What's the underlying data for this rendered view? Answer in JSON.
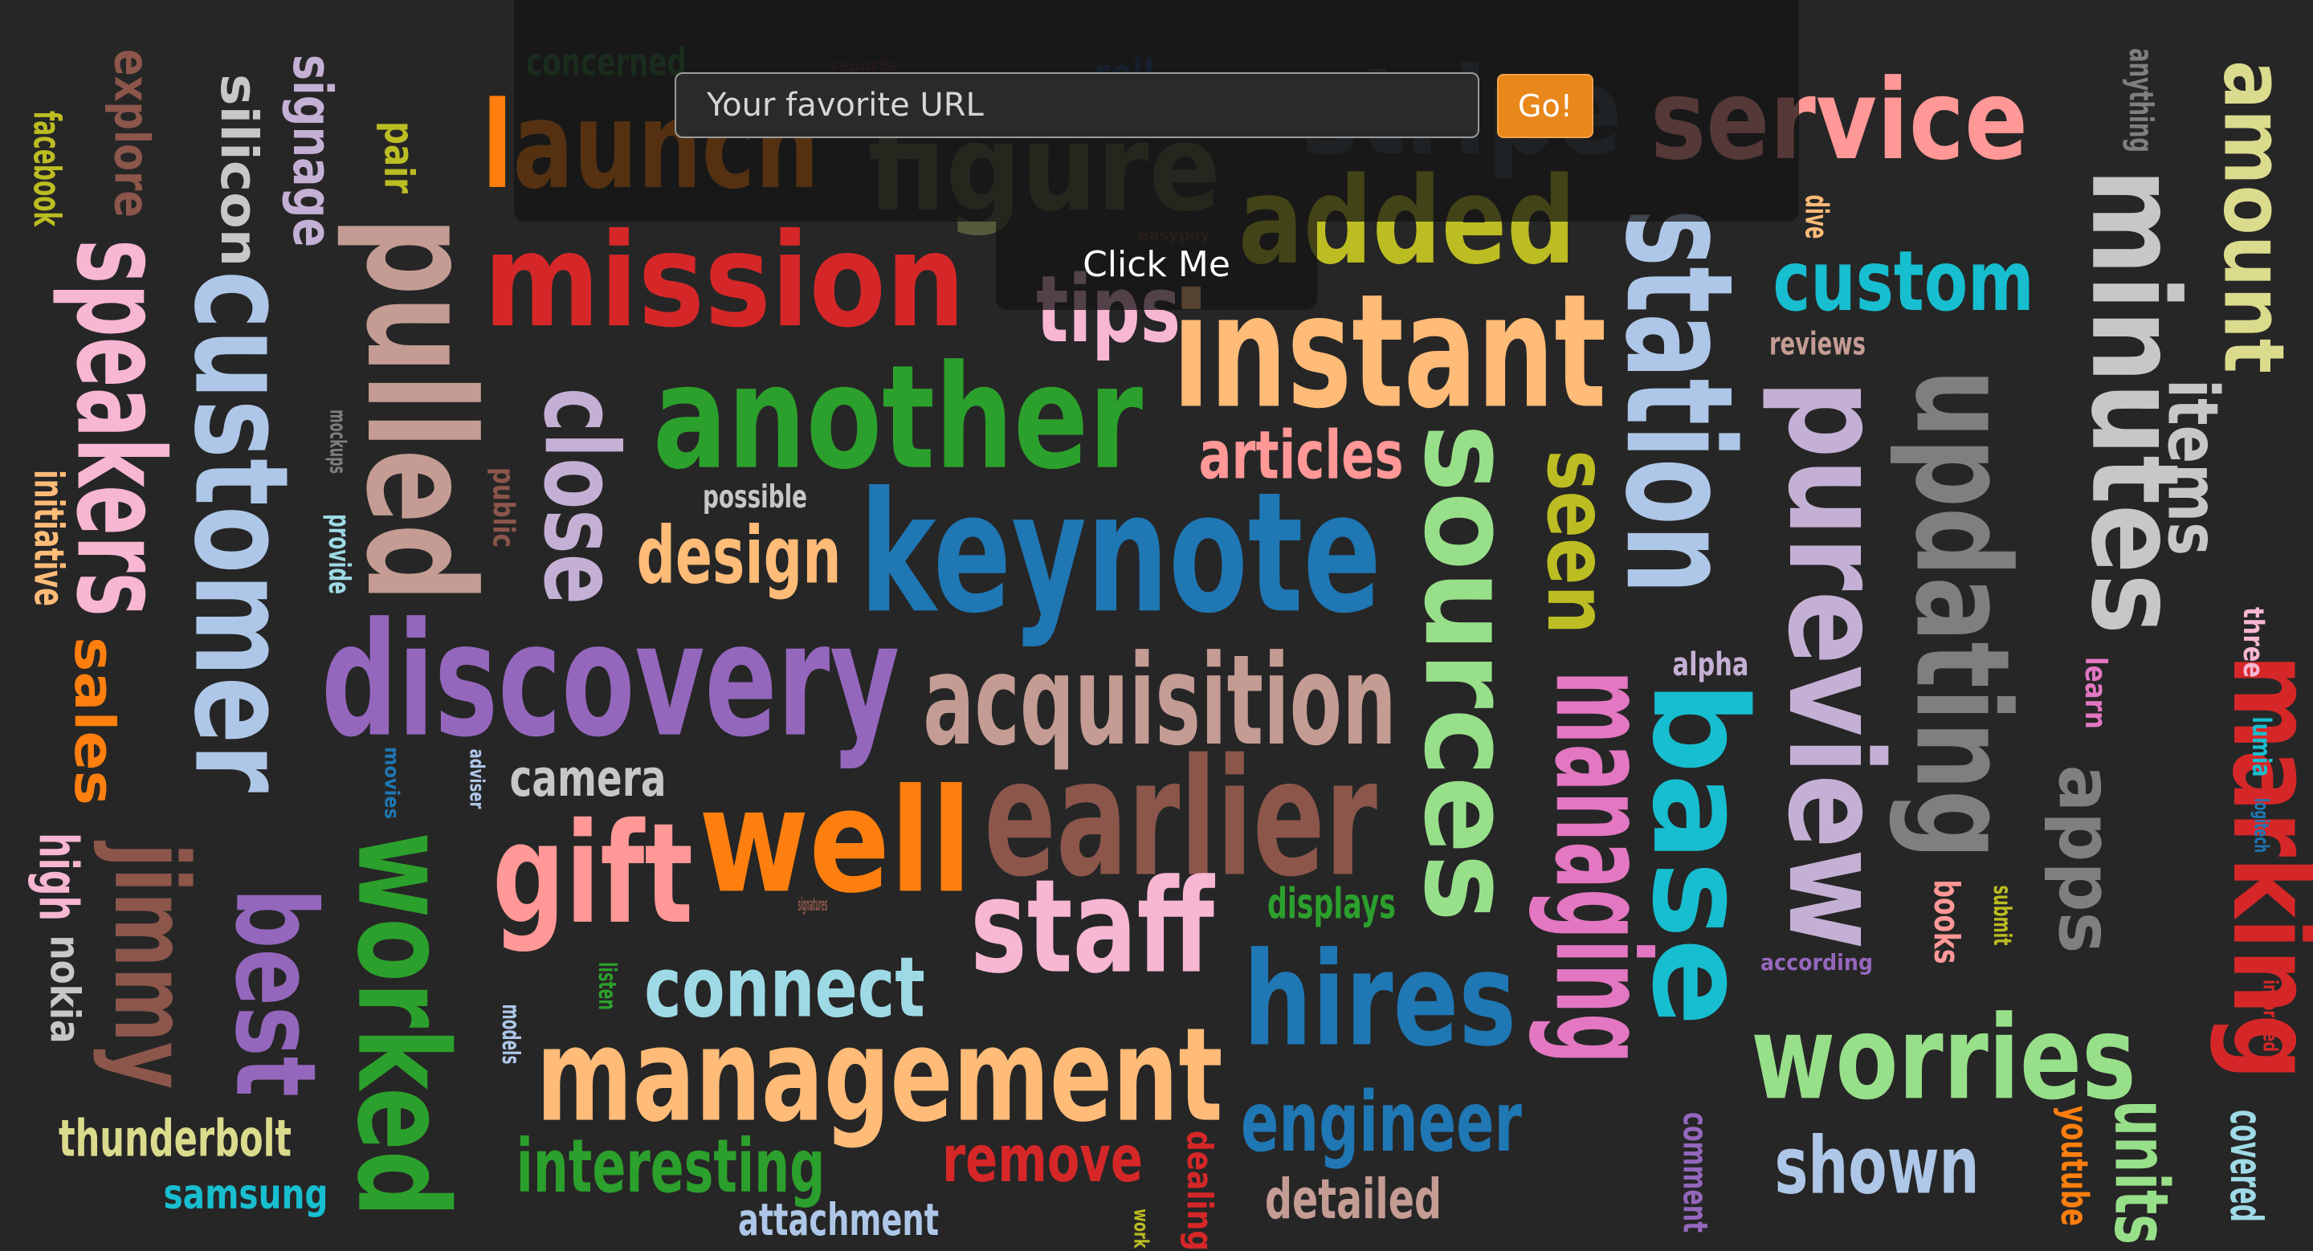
{
  "form": {
    "url_placeholder": "Your favorite URL",
    "go_label": "Go!",
    "click_label": "Click Me"
  },
  "colors": {
    "background": "#262626",
    "go_button": "#e8871a"
  },
  "words": [
    {
      "text": "launch",
      "color": "#ff7f0e"
    },
    {
      "text": "figure",
      "color": "#555c3c"
    },
    {
      "text": "stripe",
      "color": "#3e4a50"
    },
    {
      "text": "service",
      "color": "#ff9896"
    },
    {
      "text": "concerned",
      "color": "#2e6b35"
    },
    {
      "text": "reports",
      "color": "#4a2a2a"
    },
    {
      "text": "roll",
      "color": "#1f3f70"
    },
    {
      "text": "mission",
      "color": "#d62728"
    },
    {
      "text": "added",
      "color": "#bcbd22"
    },
    {
      "text": "tips",
      "color": "#f7b6d2"
    },
    {
      "text": "easypay",
      "color": "#5a3a2a"
    },
    {
      "text": "instant",
      "color": "#ffbb78"
    },
    {
      "text": "custom",
      "color": "#17becf"
    },
    {
      "text": "reviews",
      "color": "#c49c94"
    },
    {
      "text": "dive",
      "color": "#ffbb78"
    },
    {
      "text": "anything",
      "color": "#7f7f7f"
    },
    {
      "text": "amount",
      "color": "#dbdb8d"
    },
    {
      "text": "items",
      "color": "#c7c7c7"
    },
    {
      "text": "minutes",
      "color": "#c7c7c7"
    },
    {
      "text": "station",
      "color": "#aec7e8"
    },
    {
      "text": "another",
      "color": "#2ca02c"
    },
    {
      "text": "keynote",
      "color": "#1f77b4"
    },
    {
      "text": "articles",
      "color": "#ff9896"
    },
    {
      "text": "possible",
      "color": "#c7c7c7"
    },
    {
      "text": "design",
      "color": "#ffbb78"
    },
    {
      "text": "close",
      "color": "#c5b0d5"
    },
    {
      "text": "public",
      "color": "#8c564b"
    },
    {
      "text": "provide",
      "color": "#9edae5"
    },
    {
      "text": "mockups",
      "color": "#7f7f7f"
    },
    {
      "text": "pulled",
      "color": "#c49c94"
    },
    {
      "text": "pair",
      "color": "#bcbd22"
    },
    {
      "text": "signage",
      "color": "#c5b0d5"
    },
    {
      "text": "silicon",
      "color": "#c7c7c7"
    },
    {
      "text": "customer",
      "color": "#aec7e8"
    },
    {
      "text": "explore",
      "color": "#8c564b"
    },
    {
      "text": "speakers",
      "color": "#f7b6d2"
    },
    {
      "text": "facebook",
      "color": "#bcbd22"
    },
    {
      "text": "initiative",
      "color": "#ffbb78"
    },
    {
      "text": "sales",
      "color": "#ff7f0e"
    },
    {
      "text": "high",
      "color": "#f7b6d2"
    },
    {
      "text": "nokia",
      "color": "#c7c7c7"
    },
    {
      "text": "jimmy",
      "color": "#8c564b"
    },
    {
      "text": "best",
      "color": "#9467bd"
    },
    {
      "text": "worked",
      "color": "#2ca02c"
    },
    {
      "text": "thunderbolt",
      "color": "#dbdb8d"
    },
    {
      "text": "samsung",
      "color": "#17becf"
    },
    {
      "text": "discovery",
      "color": "#9467bd"
    },
    {
      "text": "acquisition",
      "color": "#c49c94"
    },
    {
      "text": "sources",
      "color": "#98df8a"
    },
    {
      "text": "seen",
      "color": "#bcbd22"
    },
    {
      "text": "managing",
      "color": "#e377c2"
    },
    {
      "text": "base",
      "color": "#17becf"
    },
    {
      "text": "alpha",
      "color": "#c5b0d5"
    },
    {
      "text": "pureview",
      "color": "#c5b0d5"
    },
    {
      "text": "updating",
      "color": "#7f7f7f"
    },
    {
      "text": "apps",
      "color": "#7f7f7f"
    },
    {
      "text": "marking",
      "color": "#d62728"
    },
    {
      "text": "learn",
      "color": "#e377c2"
    },
    {
      "text": "three",
      "color": "#f7b6d2"
    },
    {
      "text": "lumia",
      "color": "#17becf"
    },
    {
      "text": "logitech",
      "color": "#1f77b4"
    },
    {
      "text": "informed",
      "color": "#d62728"
    },
    {
      "text": "camera",
      "color": "#c7c7c7"
    },
    {
      "text": "adviser",
      "color": "#aec7e8"
    },
    {
      "text": "movies",
      "color": "#1f77b4"
    },
    {
      "text": "well",
      "color": "#ff7f0e"
    },
    {
      "text": "earlier",
      "color": "#8c564b"
    },
    {
      "text": "gift",
      "color": "#ff9896"
    },
    {
      "text": "signatures",
      "color": "#8c564b"
    },
    {
      "text": "staff",
      "color": "#f7b6d2"
    },
    {
      "text": "displays",
      "color": "#2ca02c"
    },
    {
      "text": "connect",
      "color": "#9edae5"
    },
    {
      "text": "listen",
      "color": "#2ca02c"
    },
    {
      "text": "models",
      "color": "#aec7e8"
    },
    {
      "text": "hires",
      "color": "#1f77b4"
    },
    {
      "text": "management",
      "color": "#ffbb78"
    },
    {
      "text": "engineer",
      "color": "#1f77b4"
    },
    {
      "text": "worries",
      "color": "#98df8a"
    },
    {
      "text": "books",
      "color": "#ff9896"
    },
    {
      "text": "submit",
      "color": "#bcbd22"
    },
    {
      "text": "according",
      "color": "#9467bd"
    },
    {
      "text": "interesting",
      "color": "#2ca02c"
    },
    {
      "text": "remove",
      "color": "#d62728"
    },
    {
      "text": "dealing",
      "color": "#d62728"
    },
    {
      "text": "detailed",
      "color": "#c49c94"
    },
    {
      "text": "attachment",
      "color": "#aec7e8"
    },
    {
      "text": "work",
      "color": "#bcbd22"
    },
    {
      "text": "comment",
      "color": "#9467bd"
    },
    {
      "text": "shown",
      "color": "#aec7e8"
    },
    {
      "text": "youtube",
      "color": "#ff7f0e"
    },
    {
      "text": "units",
      "color": "#98df8a"
    },
    {
      "text": "covered",
      "color": "#9edae5"
    }
  ]
}
